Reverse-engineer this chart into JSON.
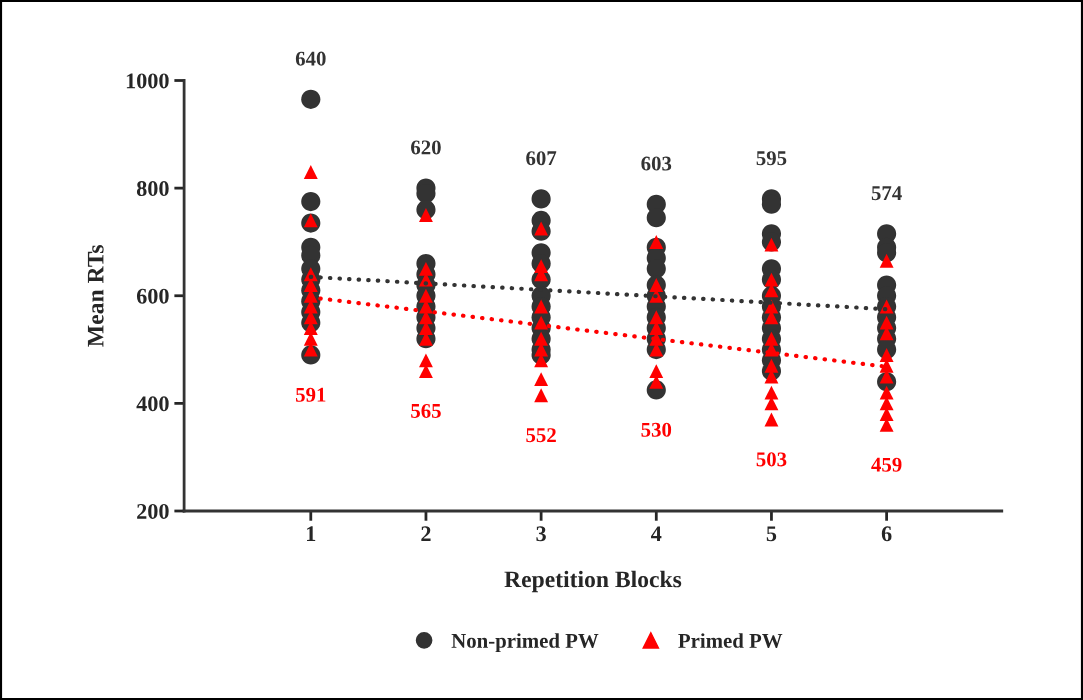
{
  "chart_data": {
    "type": "scatter",
    "xlabel": "Repetition Blocks",
    "ylabel": "Mean RTs",
    "xlim": [
      -0.1,
      7
    ],
    "ylim": [
      200,
      1000
    ],
    "xticks": [
      1,
      2,
      3,
      4,
      5,
      6
    ],
    "yticks": [
      200,
      400,
      600,
      800,
      1000
    ],
    "grid": false,
    "legend": "bottom",
    "series": [
      {
        "name": "Non-primed PW",
        "color": "#333333",
        "marker": "circle",
        "x": [
          1,
          1,
          1,
          1,
          1,
          1,
          1,
          1,
          1,
          1,
          1,
          1,
          2,
          2,
          2,
          2,
          2,
          2,
          2,
          2,
          2,
          2,
          2,
          3,
          3,
          3,
          3,
          3,
          3,
          3,
          3,
          3,
          3,
          3,
          3,
          3,
          4,
          4,
          4,
          4,
          4,
          4,
          4,
          4,
          4,
          4,
          4,
          4,
          4,
          5,
          5,
          5,
          5,
          5,
          5,
          5,
          5,
          5,
          5,
          5,
          5,
          5,
          5,
          6,
          6,
          6,
          6,
          6,
          6,
          6,
          6,
          6,
          6,
          6
        ],
        "values": [
          965,
          775,
          735,
          690,
          675,
          650,
          630,
          610,
          590,
          570,
          550,
          490,
          800,
          790,
          760,
          660,
          640,
          620,
          600,
          580,
          560,
          540,
          520,
          780,
          740,
          720,
          680,
          660,
          630,
          600,
          580,
          560,
          540,
          520,
          500,
          490,
          770,
          745,
          690,
          670,
          650,
          620,
          600,
          580,
          560,
          540,
          520,
          500,
          425,
          780,
          770,
          715,
          700,
          650,
          630,
          600,
          580,
          560,
          540,
          520,
          500,
          480,
          460,
          715,
          690,
          680,
          620,
          600,
          580,
          560,
          540,
          520,
          500,
          440
        ]
      },
      {
        "name": "Primed PW",
        "color": "#ff0000",
        "marker": "triangle",
        "x": [
          1,
          1,
          1,
          1,
          1,
          1,
          1,
          1,
          1,
          1,
          2,
          2,
          2,
          2,
          2,
          2,
          2,
          2,
          2,
          2,
          3,
          3,
          3,
          3,
          3,
          3,
          3,
          3,
          3,
          3,
          4,
          4,
          4,
          4,
          4,
          4,
          4,
          4,
          4,
          5,
          5,
          5,
          5,
          5,
          5,
          5,
          5,
          5,
          5,
          5,
          5,
          6,
          6,
          6,
          6,
          6,
          6,
          6,
          6,
          6,
          6,
          6
        ],
        "values": [
          830,
          740,
          640,
          620,
          600,
          580,
          560,
          540,
          520,
          500,
          750,
          650,
          630,
          600,
          580,
          560,
          540,
          520,
          480,
          460,
          725,
          655,
          640,
          580,
          550,
          520,
          500,
          480,
          445,
          415,
          700,
          620,
          600,
          560,
          540,
          520,
          500,
          460,
          440,
          695,
          630,
          610,
          580,
          560,
          520,
          500,
          470,
          450,
          420,
          400,
          370,
          665,
          580,
          550,
          530,
          490,
          470,
          450,
          420,
          400,
          380,
          360
        ]
      },
      {
        "type": "line",
        "color": "#333333",
        "line_style": "dotted",
        "x": [
          1,
          6
        ],
        "values": [
          635,
          575
        ]
      },
      {
        "type": "line",
        "color": "#ff0000",
        "line_style": "dotted",
        "x": [
          1,
          6
        ],
        "values": [
          597,
          468
        ]
      }
    ],
    "annotations": [
      "640",
      "620",
      "607",
      "603",
      "595",
      "574",
      "591",
      "565",
      "552",
      "530",
      "503",
      "459"
    ]
  }
}
